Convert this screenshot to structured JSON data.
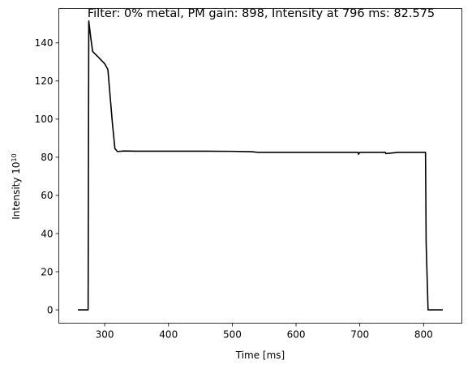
{
  "chart_data": {
    "type": "line",
    "title": "Filter: 0% metal, PM gain: 898, Intensity at 796 ms: 82.575",
    "xlabel": "Time [ms]",
    "ylabel": "Intensity",
    "ylabel_exponent": "10",
    "xlim": [
      228,
      860
    ],
    "ylim": [
      -7,
      158
    ],
    "xticks": [
      300,
      400,
      500,
      600,
      700,
      800
    ],
    "yticks": [
      0,
      20,
      40,
      60,
      80,
      100,
      120,
      140
    ],
    "grid": false,
    "line_color": "#000000",
    "series": [
      {
        "x": [
          258,
          274,
          275,
          278,
          281,
          290,
          300,
          305,
          308,
          312,
          316,
          320,
          330,
          350,
          400,
          450,
          500,
          530,
          540,
          560,
          600,
          650,
          697,
          698,
          700,
          740,
          741,
          760,
          800,
          803,
          804,
          807,
          830
        ],
        "y": [
          0,
          0,
          151.5,
          143,
          135.5,
          132.5,
          129,
          126,
          114,
          98,
          84.5,
          83,
          83.3,
          83.2,
          83.2,
          83.2,
          83.1,
          82.9,
          82.6,
          82.6,
          82.6,
          82.6,
          82.6,
          81.6,
          82.6,
          82.6,
          81.9,
          82.6,
          82.6,
          82.6,
          35,
          0,
          0
        ]
      }
    ]
  }
}
